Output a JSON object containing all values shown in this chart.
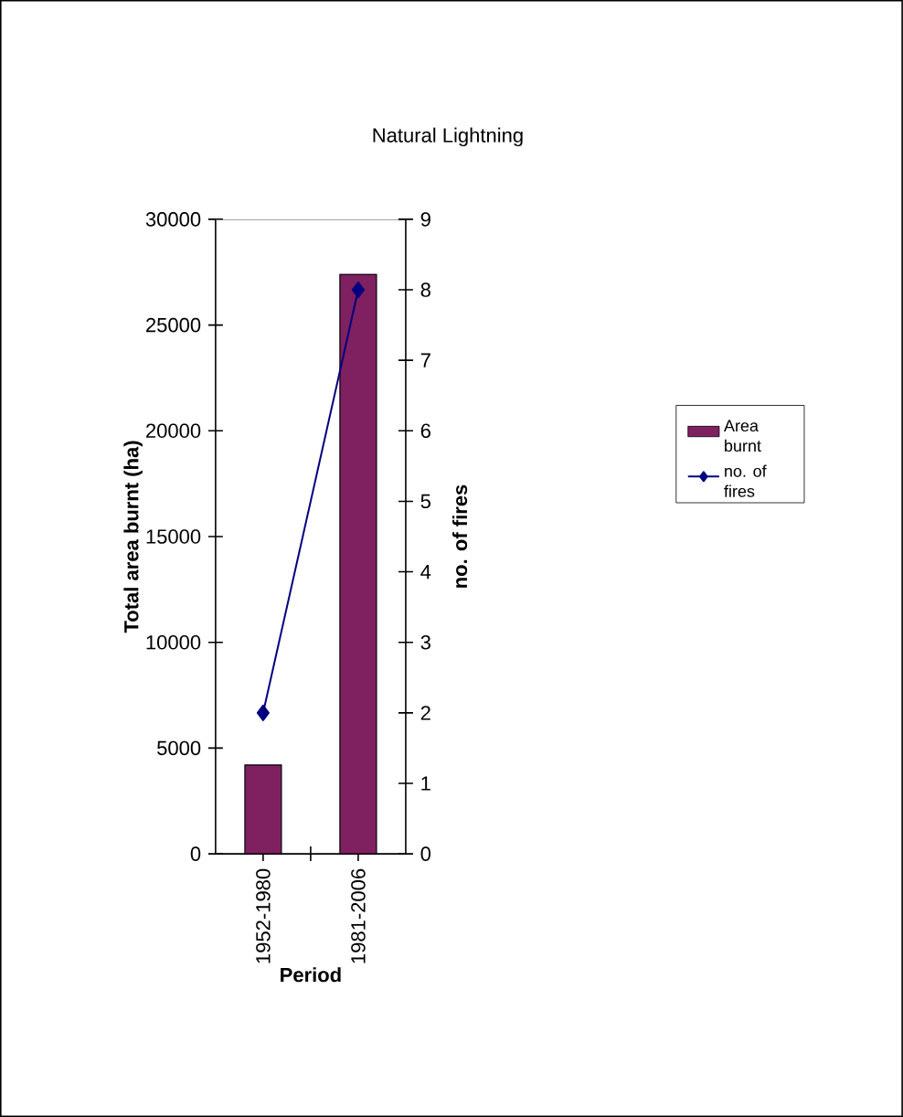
{
  "chart_data": {
    "type": "bar",
    "title": "Natural Lightning",
    "xlabel": "Period",
    "ylabel": "Total area burnt (ha)",
    "y2label": "no. of fires",
    "categories": [
      "1952-1980",
      "1981-2006"
    ],
    "series": [
      {
        "name": "Area burnt",
        "color": "#7f2060",
        "values": [
          4200,
          27400
        ]
      },
      {
        "name": "no. of fires",
        "type": "line",
        "axis": "y2",
        "color": "#000080",
        "marker": "diamond",
        "values": [
          2,
          8
        ]
      }
    ],
    "ylim": [
      0,
      30000
    ],
    "yticks": [
      0,
      5000,
      10000,
      15000,
      20000,
      25000,
      30000
    ],
    "y2lim": [
      0,
      9
    ],
    "y2ticks": [
      0,
      1,
      2,
      3,
      4,
      5,
      6,
      7,
      8,
      9
    ],
    "grid": false,
    "legend": "right"
  }
}
